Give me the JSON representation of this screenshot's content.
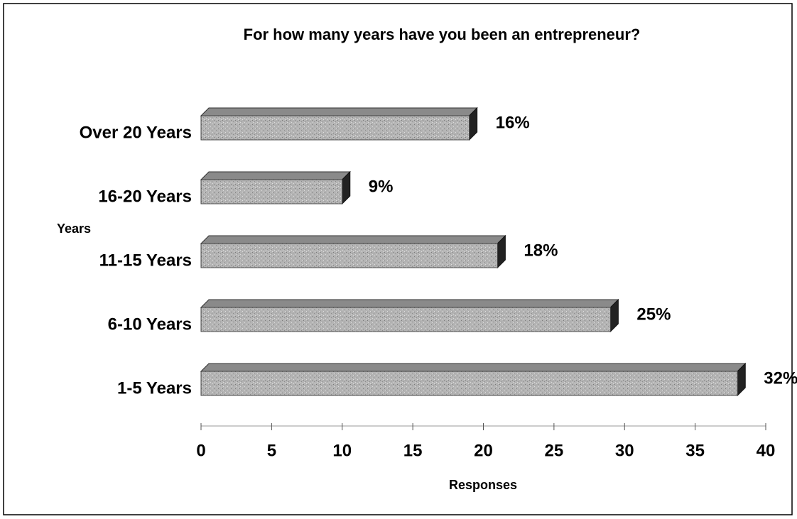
{
  "chart_data": {
    "type": "hbar3d",
    "title": "For how many years have you been an entrepreneur?",
    "y_label": "Years",
    "x_label": "Responses",
    "categories": [
      "Over 20 Years",
      "16-20 Years",
      "11-15 Years",
      "6-10 Years",
      "1-5 Years"
    ],
    "values": [
      19,
      10,
      21,
      29,
      38
    ],
    "percent_labels": [
      "16%",
      "9%",
      "18%",
      "25%",
      "32%"
    ],
    "color": "#a9a9a9",
    "xlim": [
      0,
      40
    ],
    "xticks": [
      0,
      5,
      10,
      15,
      20,
      25,
      30,
      35,
      40
    ]
  }
}
